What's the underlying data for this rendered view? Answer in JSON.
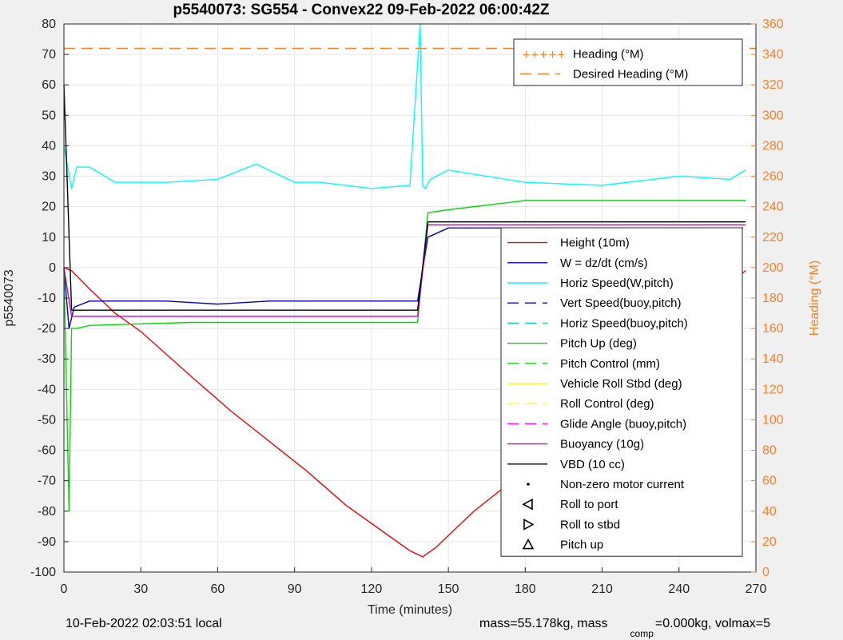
{
  "chart_data": {
    "type": "line",
    "title": "p5540073: SG554 - Convex22 09-Feb-2022 06:00:42Z",
    "xlabel": "Time (minutes)",
    "ylabel": "p5540073",
    "y2label": "Heading (°M)",
    "xlim": [
      0,
      270
    ],
    "ylim": [
      -100,
      80
    ],
    "y2lim": [
      0,
      360
    ],
    "xticks": [
      "0",
      "30",
      "60",
      "90",
      "120",
      "150",
      "180",
      "210",
      "240",
      "270"
    ],
    "yticks": [
      "-100",
      "-90",
      "-80",
      "-70",
      "-60",
      "-50",
      "-40",
      "-30",
      "-20",
      "-10",
      "0",
      "10",
      "20",
      "30",
      "40",
      "50",
      "60",
      "70",
      "80"
    ],
    "y2ticks": [
      "0",
      "20",
      "40",
      "60",
      "80",
      "100",
      "120",
      "140",
      "160",
      "180",
      "200",
      "220",
      "240",
      "260",
      "280",
      "300",
      "320",
      "340",
      "360"
    ],
    "grid": true,
    "legend_top": {
      "placement": "top-right",
      "entries": [
        {
          "label": "Heading (°M)",
          "color": "#ff7f27",
          "style": "dots"
        },
        {
          "label": "Desired Heading (°M)",
          "color": "#ff7f27",
          "style": "dashed"
        }
      ]
    },
    "legend_main": {
      "placement": "lower-right",
      "entries": [
        {
          "label": "Height (10m)",
          "color": "#ff0000",
          "style": "solid"
        },
        {
          "label": "W = dz/dt (cm/s)",
          "color": "#0000cc",
          "style": "solid"
        },
        {
          "label": "Horiz Speed(W,pitch)",
          "color": "#00ffff",
          "style": "solid"
        },
        {
          "label": "Vert Speed(buoy,pitch)",
          "color": "#0000ff",
          "style": "dashed"
        },
        {
          "label": "Horiz Speed(buoy,pitch)",
          "color": "#00cccc",
          "style": "dashed"
        },
        {
          "label": "Pitch Up (deg)",
          "color": "#00dd00",
          "style": "solid"
        },
        {
          "label": "Pitch Control (mm)",
          "color": "#00dd00",
          "style": "dashed"
        },
        {
          "label": "Vehicle Roll Stbd (deg)",
          "color": "#ffff00",
          "style": "solid"
        },
        {
          "label": "Roll Control (deg)",
          "color": "#ffff00",
          "style": "dashed"
        },
        {
          "label": "Glide Angle (buoy,pitch)",
          "color": "#ff00ff",
          "style": "dashed"
        },
        {
          "label": "Buoyancy (10g)",
          "color": "#cc00cc",
          "style": "solid"
        },
        {
          "label": "VBD (10 cc)",
          "color": "#000000",
          "style": "solid"
        },
        {
          "label": "Non-zero motor current",
          "color": "#000000",
          "style": "dot"
        },
        {
          "label": "Roll to port",
          "color": "#000000",
          "style": "triangle-left"
        },
        {
          "label": "Roll to stbd",
          "color": "#000000",
          "style": "triangle-right"
        },
        {
          "label": "Pitch up",
          "color": "#000000",
          "style": "triangle-up"
        }
      ]
    },
    "series": [
      {
        "name": "Height (10m)",
        "color": "#ff0000",
        "x": [
          0,
          3,
          10,
          20,
          30,
          50,
          65,
          80,
          95,
          110,
          125,
          135,
          140,
          145,
          160,
          175,
          190,
          205,
          220,
          235,
          250,
          266
        ],
        "y": [
          0,
          -1,
          -7,
          -15,
          -21,
          -36,
          -47,
          -57,
          -67,
          -78,
          -87,
          -93,
          -95,
          -92,
          -80,
          -70,
          -57,
          -45,
          -34,
          -23,
          -12,
          -1
        ]
      },
      {
        "name": "W = dz/dt (cm/s)",
        "color": "#0000cc",
        "x": [
          0,
          2,
          4,
          10,
          20,
          40,
          60,
          80,
          100,
          120,
          138,
          142,
          150,
          180,
          210,
          240,
          260,
          265
        ],
        "y": [
          0,
          -20,
          -13,
          -11,
          -11,
          -11,
          -12,
          -11,
          -11,
          -11,
          -11,
          10,
          13,
          13,
          13,
          13,
          13,
          13
        ]
      },
      {
        "name": "Horiz Speed(W,pitch)",
        "color": "#00ffff",
        "x": [
          0,
          3,
          5,
          10,
          20,
          40,
          60,
          75,
          90,
          100,
          120,
          135,
          139,
          140,
          141,
          143,
          150,
          180,
          210,
          240,
          260,
          266
        ],
        "y": [
          40,
          26,
          33,
          33,
          28,
          28,
          29,
          34,
          28,
          28,
          26,
          27,
          80,
          27,
          26,
          29,
          32,
          28,
          27,
          30,
          29,
          32
        ]
      },
      {
        "name": "Pitch Up (deg)",
        "color": "#00dd00",
        "x": [
          0,
          2,
          3,
          5,
          10,
          50,
          100,
          138,
          142,
          150,
          180,
          210,
          240,
          266
        ],
        "y": [
          0,
          -80,
          -20,
          -20,
          -19,
          -18,
          -18,
          -18,
          18,
          19,
          22,
          22,
          22,
          22
        ]
      },
      {
        "name": "Buoyancy (10g)",
        "color": "#cc00cc",
        "x": [
          0,
          3,
          138,
          142,
          266
        ],
        "y": [
          0,
          -16,
          -16,
          14,
          14
        ]
      },
      {
        "name": "VBD (10 cc)",
        "color": "#000000",
        "x": [
          0,
          3,
          4,
          138,
          142,
          266
        ],
        "y": [
          60,
          -14,
          -14,
          -14,
          15,
          15
        ]
      },
      {
        "name": "Desired Heading (°M)",
        "color": "#ff7f27",
        "axis": "y2",
        "x": [
          0,
          270
        ],
        "y": [
          344,
          344
        ]
      }
    ]
  },
  "footer": {
    "local_time": "10-Feb-2022 02:03:51 local",
    "mass_text": "mass=55.178kg, mass",
    "comp_sub": "comp",
    "vol_text": "=0.000kg, volmax=5"
  }
}
